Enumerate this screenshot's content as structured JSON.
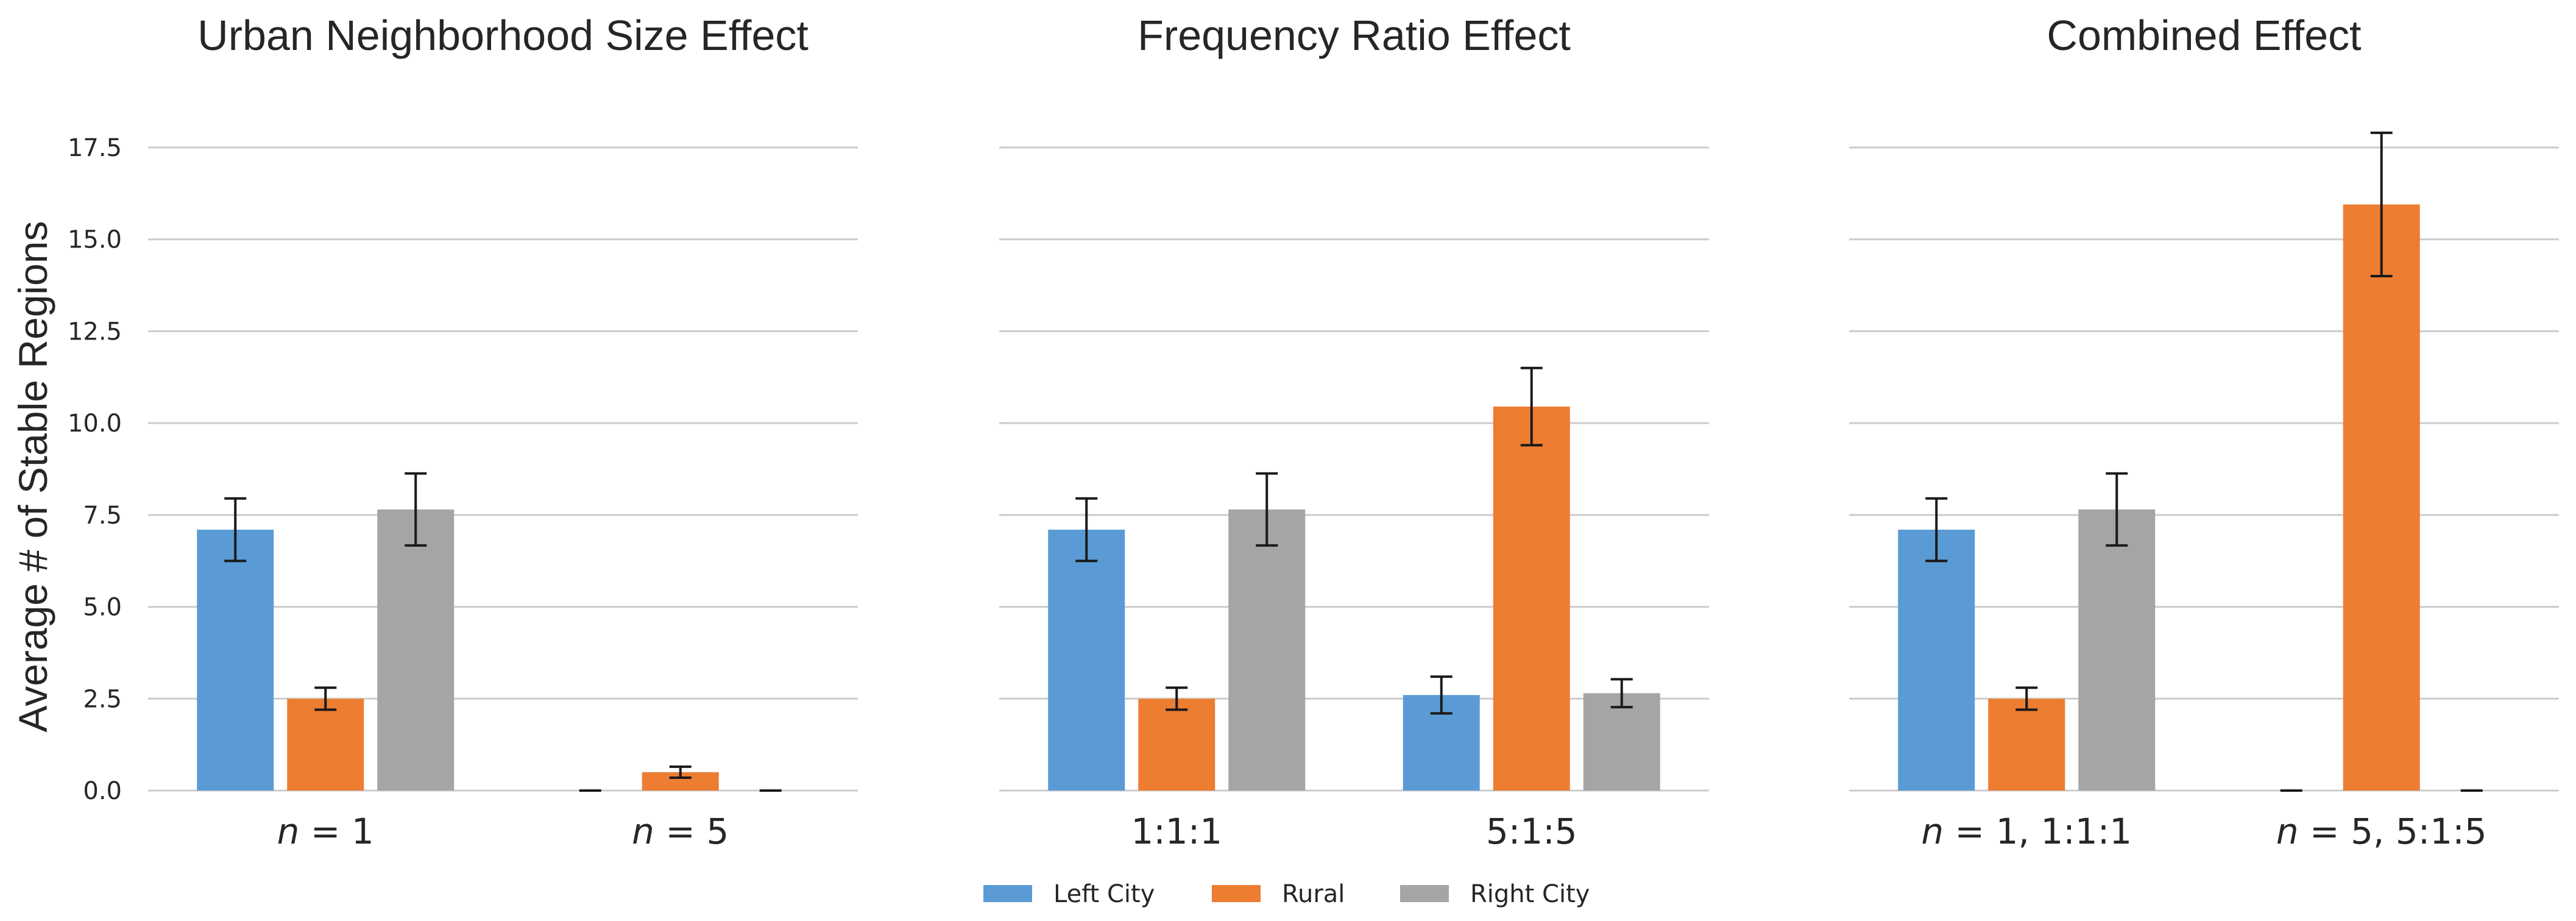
{
  "colors": {
    "left_city": "#5b9bd5",
    "rural": "#ed7d31",
    "right_city": "#a5a5a5"
  },
  "figure": {
    "ylabel": "Average # of Stable Regions"
  },
  "legend": [
    {
      "name": "Left City",
      "color": "#5b9bd5"
    },
    {
      "name": "Rural",
      "color": "#ed7d31"
    },
    {
      "name": "Right City",
      "color": "#a5a5a5"
    }
  ],
  "chart_data": [
    {
      "type": "bar",
      "title": "Urban Neighborhood Size Effect",
      "categories": [
        "n = 1",
        "n = 5"
      ],
      "series": [
        {
          "name": "Left City",
          "values": [
            7.1,
            0.0
          ],
          "err": [
            0.85,
            0.0
          ]
        },
        {
          "name": "Rural",
          "values": [
            2.5,
            0.5
          ],
          "err": [
            0.3,
            0.15
          ]
        },
        {
          "name": "Right City",
          "values": [
            7.65,
            0.0
          ],
          "err": [
            0.98,
            0.0
          ]
        }
      ],
      "ylim": [
        0,
        17.5
      ],
      "yticks": [
        "0.0",
        "2.5",
        "5.0",
        "7.5",
        "10.0",
        "12.5",
        "15.0",
        "17.5"
      ],
      "ylabel": "Average # of Stable Regions",
      "grid": true,
      "legend": "bottom-center"
    },
    {
      "type": "bar",
      "title": "Frequency Ratio Effect",
      "categories": [
        "1:1:1",
        "5:1:5"
      ],
      "series": [
        {
          "name": "Left City",
          "values": [
            7.1,
            2.6
          ],
          "err": [
            0.85,
            0.5
          ]
        },
        {
          "name": "Rural",
          "values": [
            2.5,
            10.45
          ],
          "err": [
            0.3,
            1.05
          ]
        },
        {
          "name": "Right City",
          "values": [
            7.65,
            2.65
          ],
          "err": [
            0.98,
            0.38
          ]
        }
      ],
      "ylim": [
        0,
        17.5
      ],
      "yticks": [
        "0.0",
        "2.5",
        "5.0",
        "7.5",
        "10.0",
        "12.5",
        "15.0",
        "17.5"
      ],
      "grid": true,
      "legend": "bottom-center"
    },
    {
      "type": "bar",
      "title": "Combined Effect",
      "categories": [
        "n = 1, 1:1:1",
        "n = 5, 5:1:5"
      ],
      "series": [
        {
          "name": "Left City",
          "values": [
            7.1,
            0.0
          ],
          "err": [
            0.85,
            0.0
          ]
        },
        {
          "name": "Rural",
          "values": [
            2.5,
            15.95
          ],
          "err": [
            0.3,
            1.95
          ]
        },
        {
          "name": "Right City",
          "values": [
            7.65,
            0.0
          ],
          "err": [
            0.98,
            0.0
          ]
        }
      ],
      "ylim": [
        0,
        17.5
      ],
      "yticks": [
        "0.0",
        "2.5",
        "5.0",
        "7.5",
        "10.0",
        "12.5",
        "15.0",
        "17.5"
      ],
      "grid": true,
      "legend": "bottom-center"
    }
  ]
}
